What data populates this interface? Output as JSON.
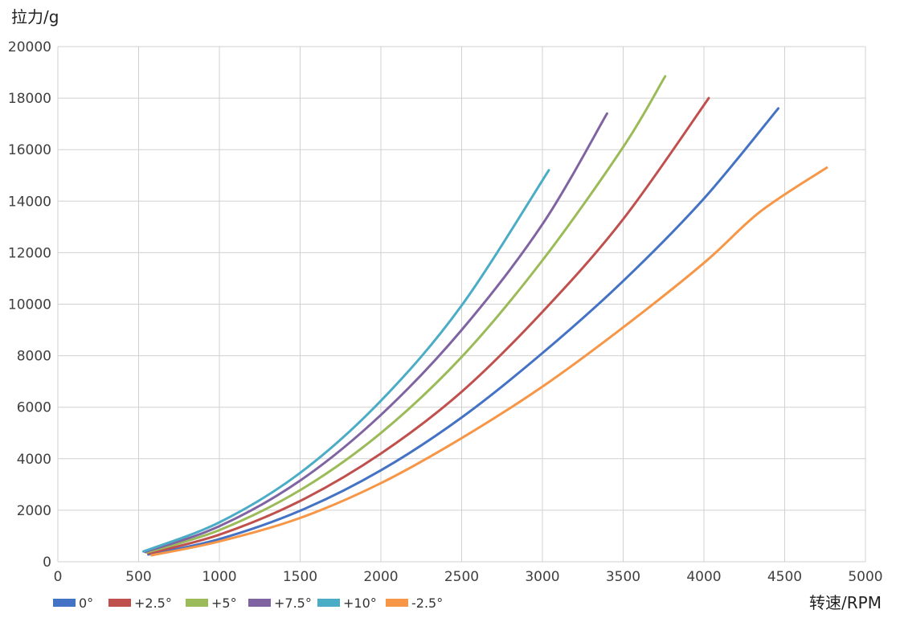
{
  "chart_data": {
    "type": "line",
    "title": "",
    "xlabel": "转速/RPM",
    "ylabel": "拉力/g",
    "xlim": [
      0,
      5000
    ],
    "ylim": [
      0,
      20000
    ],
    "x_ticks": [
      "0",
      "500",
      "1000",
      "1500",
      "2000",
      "2500",
      "3000",
      "3500",
      "4000",
      "4500",
      "5000"
    ],
    "y_ticks": [
      "0",
      "2000",
      "4000",
      "6000",
      "8000",
      "10000",
      "12000",
      "14000",
      "16000",
      "18000",
      "20000"
    ],
    "grid": true,
    "legend_position": "bottom-left",
    "series": [
      {
        "name": "0°",
        "color": "#4472C4",
        "points": [
          [
            560,
            280
          ],
          [
            1000,
            880
          ],
          [
            1500,
            1980
          ],
          [
            2000,
            3550
          ],
          [
            2500,
            5600
          ],
          [
            3000,
            8100
          ],
          [
            3500,
            10900
          ],
          [
            4000,
            14100
          ],
          [
            4460,
            17600
          ]
        ]
      },
      {
        "name": "+2.5°",
        "color": "#C0504D",
        "points": [
          [
            560,
            320
          ],
          [
            1000,
            1050
          ],
          [
            1500,
            2360
          ],
          [
            2000,
            4200
          ],
          [
            2500,
            6600
          ],
          [
            3000,
            9700
          ],
          [
            3500,
            13300
          ],
          [
            4030,
            18000
          ]
        ]
      },
      {
        "name": "+5°",
        "color": "#9BBB59",
        "points": [
          [
            550,
            360
          ],
          [
            1000,
            1230
          ],
          [
            1500,
            2780
          ],
          [
            2000,
            5000
          ],
          [
            2500,
            7950
          ],
          [
            3000,
            11700
          ],
          [
            3500,
            16100
          ],
          [
            3760,
            18850
          ]
        ]
      },
      {
        "name": "+7.5°",
        "color": "#8064A2",
        "points": [
          [
            540,
            380
          ],
          [
            1000,
            1380
          ],
          [
            1500,
            3150
          ],
          [
            2000,
            5700
          ],
          [
            2500,
            9000
          ],
          [
            3000,
            13100
          ],
          [
            3400,
            17400
          ]
        ]
      },
      {
        "name": "+10°",
        "color": "#4BACC6",
        "points": [
          [
            530,
            400
          ],
          [
            1000,
            1530
          ],
          [
            1500,
            3450
          ],
          [
            2000,
            6250
          ],
          [
            2500,
            9950
          ],
          [
            3040,
            15200
          ]
        ]
      },
      {
        "name": "-2.5°",
        "color": "#F79646",
        "points": [
          [
            580,
            250
          ],
          [
            1000,
            790
          ],
          [
            1500,
            1700
          ],
          [
            2000,
            3050
          ],
          [
            2500,
            4800
          ],
          [
            3000,
            6800
          ],
          [
            3500,
            9100
          ],
          [
            4000,
            11600
          ],
          [
            4350,
            13600
          ],
          [
            4760,
            15300
          ]
        ]
      }
    ]
  }
}
